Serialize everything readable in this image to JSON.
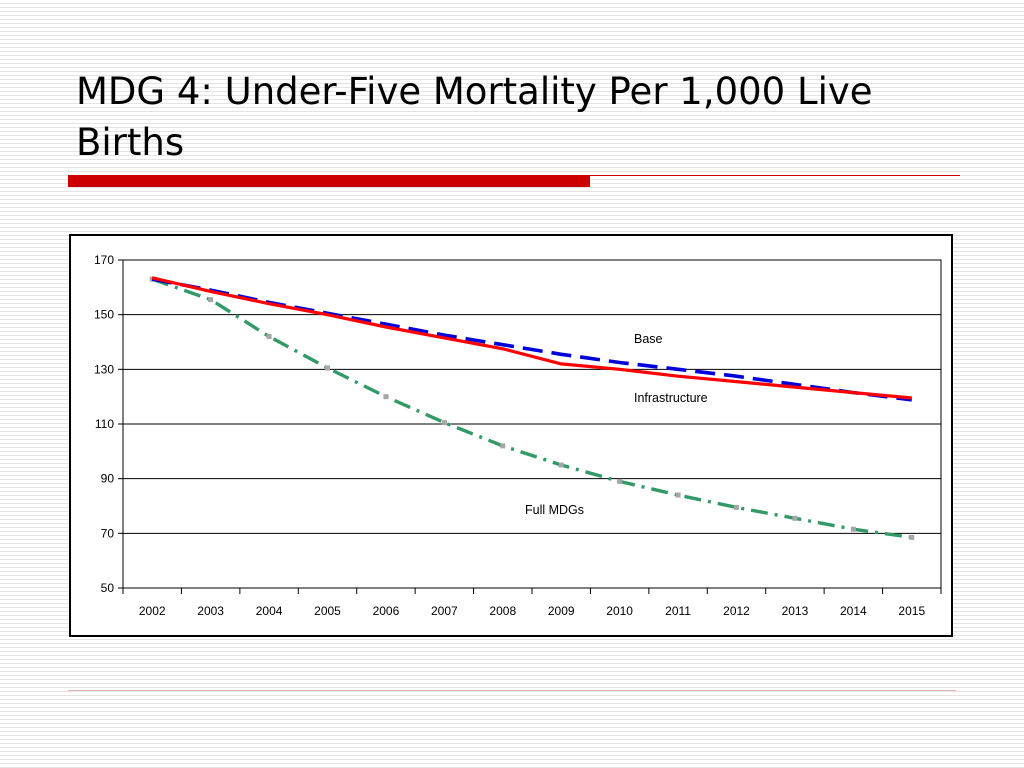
{
  "slide": {
    "title": "MDG 4: Under-Five Mortality Per 1,000 Live Births"
  },
  "colors": {
    "accent_bar": "#cc0000",
    "base_series": "#ff0000",
    "infrastructure_series": "#0000dd",
    "full_mdgs_series": "#339966",
    "point_marker": "#a6a6a6"
  },
  "chart_data": {
    "type": "line",
    "title": "",
    "xlabel": "",
    "ylabel": "",
    "categories": [
      "2002",
      "2003",
      "2004",
      "2005",
      "2006",
      "2007",
      "2008",
      "2009",
      "2010",
      "2011",
      "2012",
      "2013",
      "2014",
      "2015"
    ],
    "ylim": [
      50,
      170
    ],
    "yticks": [
      50,
      70,
      90,
      110,
      130,
      150,
      170
    ],
    "grid": "horizontal",
    "legend": "none (series labelled inline)",
    "series": [
      {
        "name": "Base",
        "style": "solid",
        "values": [
          163.5,
          158.5,
          154,
          150,
          145.5,
          141.5,
          137.5,
          132,
          130,
          127.5,
          125.5,
          123.5,
          121.5,
          119.5
        ]
      },
      {
        "name": "Infrastructure",
        "style": "dashed",
        "values": [
          163,
          159,
          154.5,
          150.5,
          146.5,
          142.5,
          139,
          135.5,
          132.5,
          130,
          127.5,
          124.5,
          121.5,
          118.8
        ]
      },
      {
        "name": "Full MDGs",
        "style": "dash-dot",
        "values": [
          163,
          155.5,
          142,
          130.5,
          120,
          110.5,
          102,
          95,
          89,
          84,
          79.5,
          75.5,
          71.5,
          68.5
        ]
      }
    ],
    "annotations": [
      {
        "text": "Base",
        "series": "Base"
      },
      {
        "text": "Infrastructure",
        "series": "Infrastructure"
      },
      {
        "text": "Full MDGs",
        "series": "Full MDGs"
      }
    ]
  }
}
